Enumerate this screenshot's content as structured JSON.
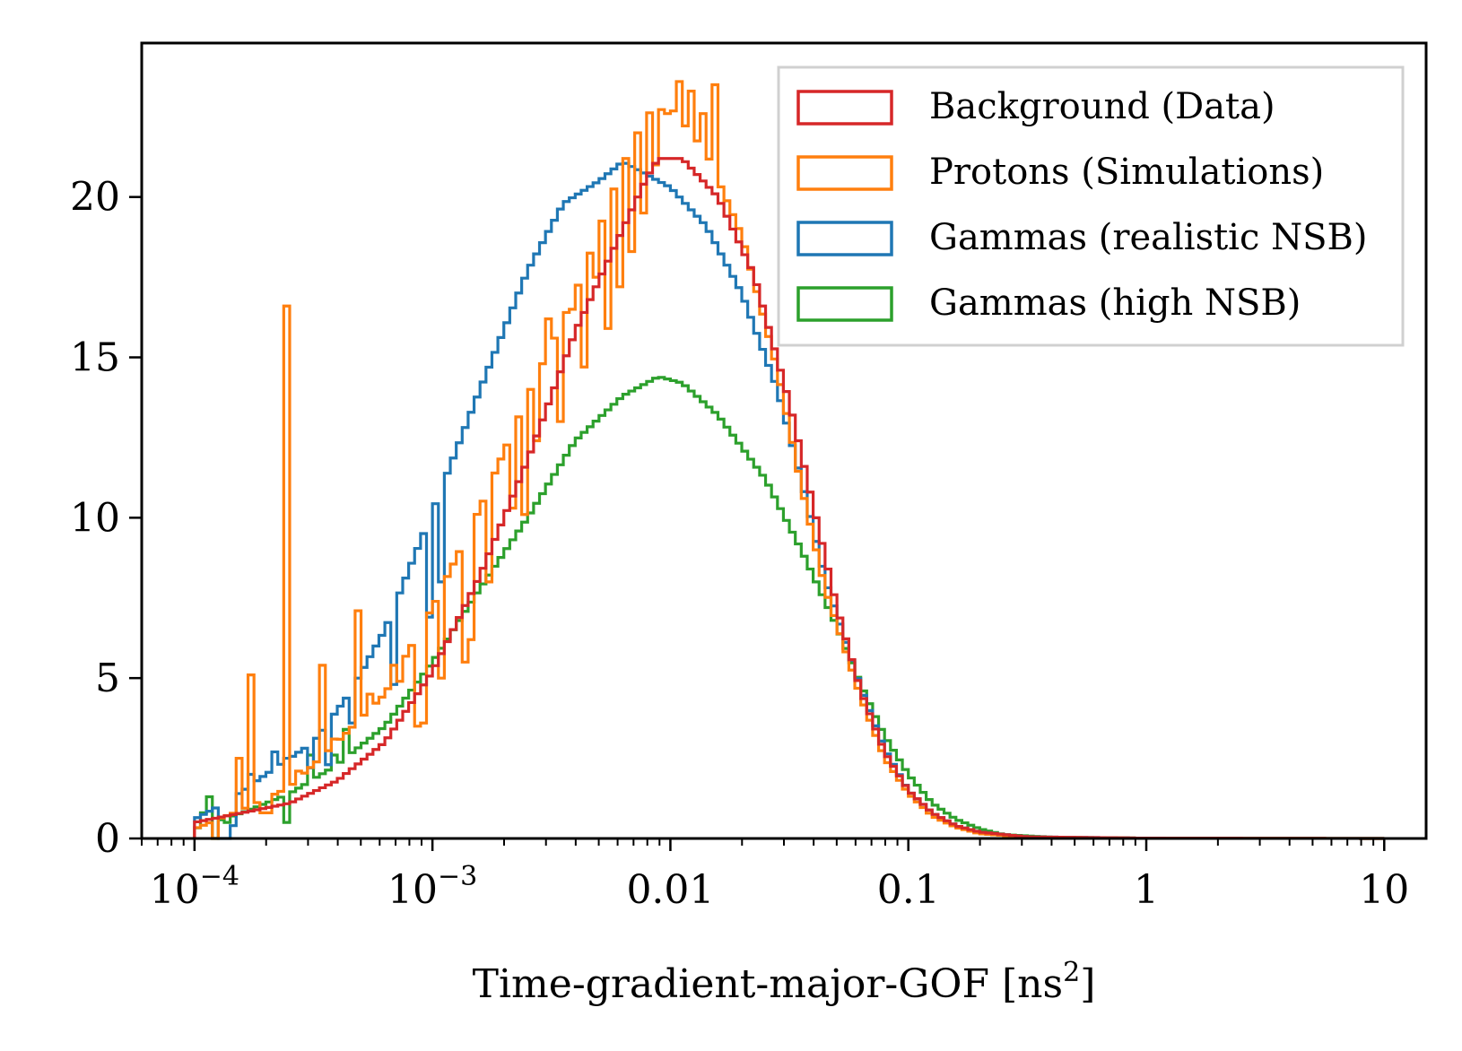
{
  "chart_data": {
    "type": "histogram",
    "title": "",
    "xlabel_main": "Time-gradient-major-GOF [ns",
    "xlabel_sup": "2",
    "xlabel_close": "]",
    "ylabel": "",
    "xscale": "log",
    "xlim": [
      6e-05,
      15
    ],
    "ylim": [
      0,
      24.8
    ],
    "grid": false,
    "legend_position": "top-right",
    "x_ticks": [
      {
        "value": 0.0001,
        "base": "10",
        "exp": "−4"
      },
      {
        "value": 0.001,
        "base": "10",
        "exp": "−3"
      },
      {
        "value": 0.01,
        "base": "0.01",
        "exp": ""
      },
      {
        "value": 0.1,
        "base": "0.1",
        "exp": ""
      },
      {
        "value": 1,
        "base": "1",
        "exp": ""
      },
      {
        "value": 10,
        "base": "10",
        "exp": ""
      }
    ],
    "y_ticks": [
      {
        "value": 0,
        "label": "0"
      },
      {
        "value": 5,
        "label": "5"
      },
      {
        "value": 10,
        "label": "10"
      },
      {
        "value": 15,
        "label": "15"
      },
      {
        "value": 20,
        "label": "20"
      }
    ],
    "bin_edges_log10": {
      "start": -4,
      "stop": 1,
      "n_bins": 200
    },
    "series": [
      {
        "name": "Background (Data)",
        "color": "#d62728",
        "control_points": [
          [
            -4.0,
            0.5
          ],
          [
            -3.8,
            0.8
          ],
          [
            -3.6,
            1.1
          ],
          [
            -3.4,
            1.8
          ],
          [
            -3.2,
            3.0
          ],
          [
            -3.0,
            5.2
          ],
          [
            -2.8,
            8.2
          ],
          [
            -2.6,
            11.8
          ],
          [
            -2.4,
            15.8
          ],
          [
            -2.2,
            19.0
          ],
          [
            -2.1,
            20.6
          ],
          [
            -2.05,
            21.2
          ],
          [
            -1.95,
            21.2
          ],
          [
            -1.8,
            20.0
          ],
          [
            -1.65,
            17.6
          ],
          [
            -1.5,
            13.6
          ],
          [
            -1.4,
            10.4
          ],
          [
            -1.3,
            7.2
          ],
          [
            -1.2,
            4.6
          ],
          [
            -1.1,
            2.7
          ],
          [
            -1.0,
            1.5
          ],
          [
            -0.9,
            0.8
          ],
          [
            -0.8,
            0.4
          ],
          [
            -0.7,
            0.2
          ],
          [
            -0.5,
            0.05
          ],
          [
            0.0,
            0.01
          ],
          [
            1.0,
            0.0
          ]
        ],
        "overrides": []
      },
      {
        "name": "Protons (Simulations)",
        "color": "#ff7f0e",
        "control_points": [
          [
            -4.0,
            0.3
          ],
          [
            -3.8,
            0.9
          ],
          [
            -3.6,
            1.6
          ],
          [
            -3.4,
            3.0
          ],
          [
            -3.2,
            4.5
          ],
          [
            -3.0,
            7.2
          ],
          [
            -2.8,
            10.3
          ],
          [
            -2.6,
            13.8
          ],
          [
            -2.4,
            17.0
          ],
          [
            -2.2,
            21.0
          ],
          [
            -2.1,
            22.6
          ],
          [
            -2.0,
            22.8
          ],
          [
            -1.85,
            21.4
          ],
          [
            -1.7,
            18.8
          ],
          [
            -1.55,
            14.6
          ],
          [
            -1.45,
            11.0
          ],
          [
            -1.35,
            7.8
          ],
          [
            -1.2,
            4.4
          ],
          [
            -1.1,
            2.5
          ],
          [
            -1.0,
            1.4
          ],
          [
            -0.9,
            0.7
          ],
          [
            -0.8,
            0.35
          ],
          [
            -0.7,
            0.15
          ],
          [
            -0.5,
            0.04
          ],
          [
            0.0,
            0.01
          ],
          [
            1.0,
            0.0
          ]
        ],
        "overrides": [
          [
            3,
            0.0
          ],
          [
            7,
            2.5
          ],
          [
            9,
            5.1
          ],
          [
            11,
            0.8
          ],
          [
            12,
            0.8
          ],
          [
            15,
            16.6
          ],
          [
            17,
            2.1
          ],
          [
            21,
            5.4
          ],
          [
            23,
            3.1
          ],
          [
            27,
            7.1
          ],
          [
            29,
            4.5
          ],
          [
            33,
            5.4
          ],
          [
            34,
            4.9
          ],
          [
            37,
            3.5
          ],
          [
            38,
            3.6
          ],
          [
            41,
            5.0
          ],
          [
            45,
            5.5
          ],
          [
            46,
            6.2
          ],
          [
            49,
            8.0
          ],
          [
            53,
            10.3
          ],
          [
            55,
            10.1
          ],
          [
            57,
            12.4
          ],
          [
            59,
            16.2
          ],
          [
            61,
            13.0
          ],
          [
            63,
            16.5
          ],
          [
            65,
            14.7
          ],
          [
            67,
            17.5
          ],
          [
            69,
            15.9
          ],
          [
            71,
            17.2
          ],
          [
            73,
            18.3
          ],
          [
            75,
            19.5
          ],
          [
            77,
            21.0
          ],
          [
            79,
            22.6
          ],
          [
            81,
            23.6
          ],
          [
            83,
            23.3
          ],
          [
            85,
            22.6
          ],
          [
            87,
            23.5
          ]
        ]
      },
      {
        "name": "Gammas (realistic NSB)",
        "color": "#1f77b4",
        "control_points": [
          [
            -4.0,
            0.6
          ],
          [
            -3.85,
            1.2
          ],
          [
            -3.7,
            2.0
          ],
          [
            -3.5,
            3.0
          ],
          [
            -3.35,
            4.5
          ],
          [
            -3.2,
            6.5
          ],
          [
            -3.0,
            10.2
          ],
          [
            -2.8,
            14.0
          ],
          [
            -2.6,
            17.7
          ],
          [
            -2.45,
            19.8
          ],
          [
            -2.3,
            20.5
          ],
          [
            -2.2,
            21.1
          ],
          [
            -2.1,
            20.7
          ],
          [
            -2.0,
            20.3
          ],
          [
            -1.85,
            19.1
          ],
          [
            -1.7,
            17.0
          ],
          [
            -1.55,
            14.0
          ],
          [
            -1.45,
            11.2
          ],
          [
            -1.35,
            8.1
          ],
          [
            -1.2,
            4.7
          ],
          [
            -1.1,
            2.8
          ],
          [
            -1.0,
            1.5
          ],
          [
            -0.9,
            0.8
          ],
          [
            -0.8,
            0.4
          ],
          [
            -0.7,
            0.2
          ],
          [
            -0.5,
            0.05
          ],
          [
            0.0,
            0.01
          ],
          [
            1.0,
            0.0
          ]
        ],
        "overrides": [
          [
            4,
            0.0
          ],
          [
            5,
            0.0
          ],
          [
            6,
            0.4
          ],
          [
            9,
            2.0
          ],
          [
            13,
            2.7
          ],
          [
            15,
            2.5
          ],
          [
            19,
            2.2
          ],
          [
            22,
            2.3
          ],
          [
            26,
            3.6
          ],
          [
            33,
            4.8
          ],
          [
            39,
            6.9
          ],
          [
            41,
            8.0
          ]
        ]
      },
      {
        "name": "Gammas (high NSB)",
        "color": "#2ca02c",
        "control_points": [
          [
            -4.0,
            0.3
          ],
          [
            -3.8,
            0.8
          ],
          [
            -3.6,
            1.4
          ],
          [
            -3.4,
            2.3
          ],
          [
            -3.2,
            3.5
          ],
          [
            -3.0,
            5.5
          ],
          [
            -2.8,
            7.8
          ],
          [
            -2.6,
            10.0
          ],
          [
            -2.4,
            12.4
          ],
          [
            -2.2,
            13.8
          ],
          [
            -2.05,
            14.4
          ],
          [
            -1.95,
            14.2
          ],
          [
            -1.8,
            13.2
          ],
          [
            -1.6,
            11.2
          ],
          [
            -1.45,
            9.0
          ],
          [
            -1.3,
            6.6
          ],
          [
            -1.2,
            4.8
          ],
          [
            -1.1,
            3.2
          ],
          [
            -1.0,
            2.0
          ],
          [
            -0.9,
            1.1
          ],
          [
            -0.8,
            0.6
          ],
          [
            -0.7,
            0.3
          ],
          [
            -0.6,
            0.12
          ],
          [
            -0.4,
            0.04
          ],
          [
            0.0,
            0.01
          ],
          [
            1.0,
            0.0
          ]
        ],
        "overrides": [
          [
            1,
            0.8
          ],
          [
            2,
            1.3
          ],
          [
            3,
            0.0
          ],
          [
            5,
            0.5
          ],
          [
            6,
            0.7
          ],
          [
            15,
            0.5
          ],
          [
            19,
            2.6
          ],
          [
            23,
            2.6
          ],
          [
            25,
            3.4
          ]
        ]
      }
    ]
  }
}
